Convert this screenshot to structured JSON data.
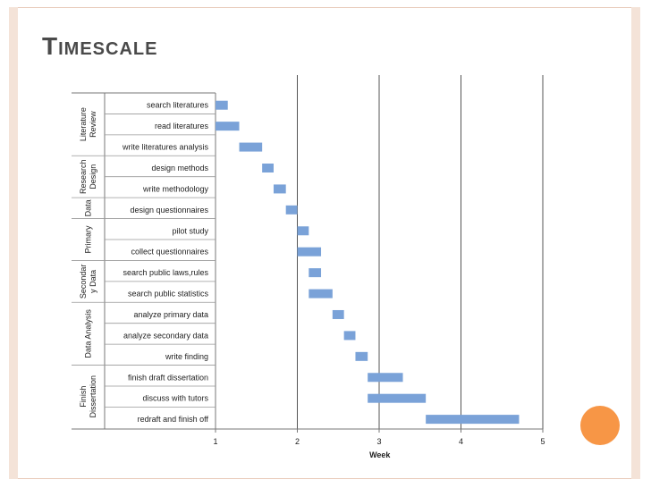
{
  "slide": {
    "title": "Timescale",
    "accent_color": "#f79646",
    "frame_color": "#e8c9b8"
  },
  "chart_data": {
    "type": "bar",
    "orientation": "horizontal-gantt",
    "xlabel": "Week",
    "xlim": [
      1,
      5
    ],
    "xticks": [
      1,
      2,
      3,
      4,
      5
    ],
    "bar_color": "#7aa2d8",
    "grid": true,
    "tasks": [
      {
        "label": "search literatures",
        "start": 1.0,
        "end": 1.15
      },
      {
        "label": "read literatures",
        "start": 1.0,
        "end": 1.29
      },
      {
        "label": "write literatures analysis",
        "start": 1.29,
        "end": 1.57
      },
      {
        "label": "design methods",
        "start": 1.57,
        "end": 1.71
      },
      {
        "label": "write methodology",
        "start": 1.71,
        "end": 1.86
      },
      {
        "label": "design questionnaires",
        "start": 1.86,
        "end": 2.0
      },
      {
        "label": "pilot study",
        "start": 2.0,
        "end": 2.14
      },
      {
        "label": "collect questionnaires",
        "start": 2.0,
        "end": 2.29
      },
      {
        "label": "search public laws,rules",
        "start": 2.14,
        "end": 2.29
      },
      {
        "label": "search public statistics",
        "start": 2.14,
        "end": 2.43
      },
      {
        "label": "analyze primary data",
        "start": 2.43,
        "end": 2.57
      },
      {
        "label": "analyze secondary data",
        "start": 2.57,
        "end": 2.71
      },
      {
        "label": "write finding",
        "start": 2.71,
        "end": 2.86
      },
      {
        "label": "finish draft dissertation",
        "start": 2.86,
        "end": 3.29
      },
      {
        "label": "discuss with tutors",
        "start": 2.86,
        "end": 3.57
      },
      {
        "label": "redraft and finish off",
        "start": 3.57,
        "end": 4.71
      }
    ],
    "groups": [
      {
        "label": [
          "Literature",
          "Review"
        ],
        "first": 0,
        "last": 2
      },
      {
        "label": [
          "Research",
          "Design"
        ],
        "first": 3,
        "last": 4
      },
      {
        "label": [
          "Data"
        ],
        "first": 5,
        "last": 5
      },
      {
        "label": [
          "Primary"
        ],
        "first": 6,
        "last": 7
      },
      {
        "label": [
          "Secondar",
          "y Data"
        ],
        "first": 8,
        "last": 9
      },
      {
        "label": [
          "Data Analysis"
        ],
        "first": 10,
        "last": 12
      },
      {
        "label": [
          "Finish",
          "Dissertation"
        ],
        "first": 13,
        "last": 15
      }
    ]
  }
}
